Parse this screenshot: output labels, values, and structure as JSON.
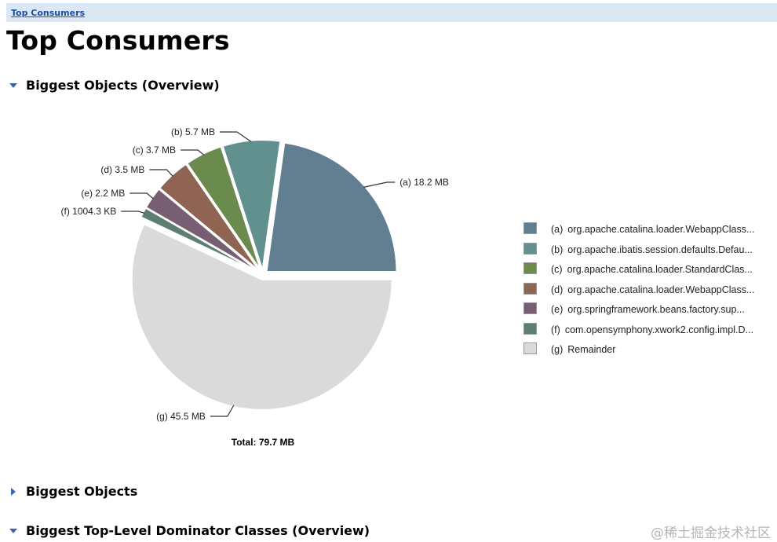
{
  "breadcrumb": {
    "link": "Top Consumers"
  },
  "page_title": "Top Consumers",
  "sections": [
    {
      "label": "Biggest Objects (Overview)",
      "expanded": true
    },
    {
      "label": "Biggest Objects",
      "expanded": false
    },
    {
      "label": "Biggest Top-Level Dominator Classes (Overview)",
      "expanded": true
    }
  ],
  "chart_data": {
    "type": "pie",
    "total_label": "Total: 79.7 MB",
    "slices": [
      {
        "id": "(a)",
        "value_label": "18.2 MB",
        "value_mb": 18.2,
        "legend": "org.apache.catalina.loader.WebappClass...",
        "color": "#617f90"
      },
      {
        "id": "(b)",
        "value_label": "5.7 MB",
        "value_mb": 5.7,
        "legend": "org.apache.ibatis.session.defaults.Defau...",
        "color": "#62908f"
      },
      {
        "id": "(c)",
        "value_label": "3.7 MB",
        "value_mb": 3.7,
        "legend": "org.apache.catalina.loader.StandardClas...",
        "color": "#6a8a4e"
      },
      {
        "id": "(d)",
        "value_label": "3.5 MB",
        "value_mb": 3.5,
        "legend": "org.apache.catalina.loader.WebappClass...",
        "color": "#8f6452"
      },
      {
        "id": "(e)",
        "value_label": "2.2 MB",
        "value_mb": 2.2,
        "legend": "org.springframework.beans.factory.sup...",
        "color": "#775e72"
      },
      {
        "id": "(f)",
        "value_label": "1004.3 KB",
        "value_mb": 1.0043,
        "legend": "com.opensymphony.xwork2.config.impl.D...",
        "color": "#5e7e72"
      },
      {
        "id": "(g)",
        "value_label": "45.5 MB",
        "value_mb": 45.5,
        "legend": "Remainder",
        "color": "#dadada"
      }
    ]
  },
  "watermark": "@稀土掘金技术社区"
}
